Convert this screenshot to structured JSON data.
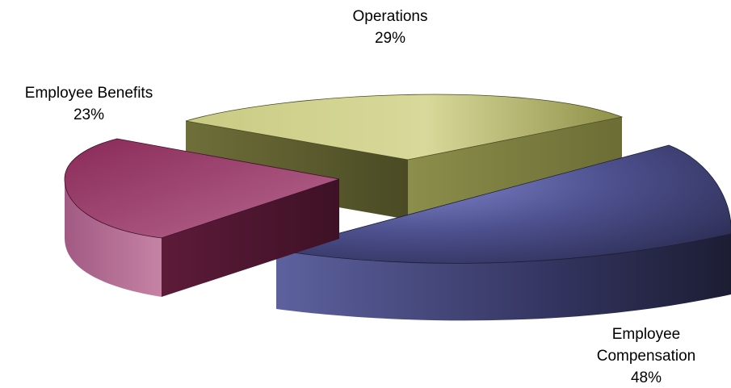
{
  "chart_data": {
    "type": "pie",
    "style": "3d-exploded",
    "title": "",
    "legend": "none",
    "slices": [
      {
        "label_lines": [
          "Operations"
        ],
        "value": 29,
        "value_text": "29%",
        "color": "#a9ab5c"
      },
      {
        "label_lines": [
          "Employee",
          "Compensation"
        ],
        "value": 48,
        "value_text": "48%",
        "color": "#5c5f9c"
      },
      {
        "label_lines": [
          "Employee Benefits"
        ],
        "value": 23,
        "value_text": "23%",
        "color": "#a23f6b"
      }
    ]
  }
}
